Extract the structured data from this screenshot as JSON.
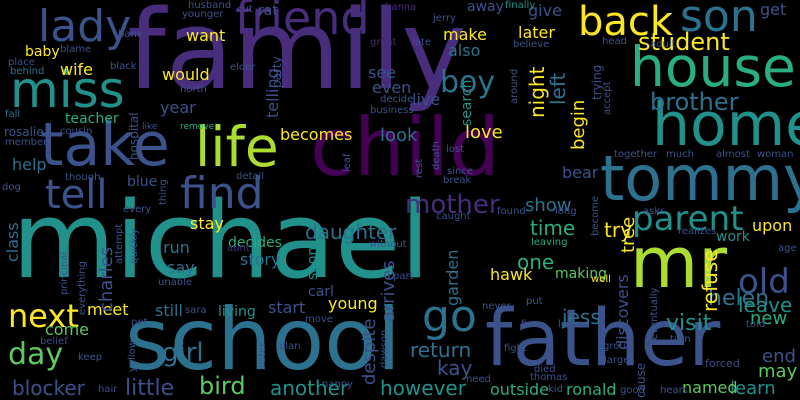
{
  "word_cloud": {
    "background": "#000000",
    "palette": [
      "#440154",
      "#472d7b",
      "#3b528b",
      "#2c728e",
      "#21918c",
      "#28ae80",
      "#5ec962",
      "#addc30",
      "#fde725"
    ],
    "words": [
      {
        "text": "family",
        "color": "#472d7b"
      },
      {
        "text": "michael",
        "color": "#21918c"
      },
      {
        "text": "school",
        "color": "#2c728e"
      },
      {
        "text": "father",
        "color": "#3b528b"
      },
      {
        "text": "child",
        "color": "#440154"
      },
      {
        "text": "mr",
        "color": "#addc30"
      },
      {
        "text": "tommy",
        "color": "#2c728e"
      },
      {
        "text": "home",
        "color": "#21918c"
      },
      {
        "text": "house",
        "color": "#28ae80"
      },
      {
        "text": "take",
        "color": "#3b528b"
      },
      {
        "text": "life",
        "color": "#addc30"
      },
      {
        "text": "miss",
        "color": "#21918c"
      },
      {
        "text": "friend",
        "color": "#472d7b"
      },
      {
        "text": "son",
        "color": "#2c728e"
      },
      {
        "text": "back",
        "color": "#fde725"
      },
      {
        "text": "lady",
        "color": "#3b528b"
      },
      {
        "text": "find",
        "color": "#3b528b"
      },
      {
        "text": "tell",
        "color": "#3b528b"
      },
      {
        "text": "parent",
        "color": "#21918c"
      },
      {
        "text": "go",
        "color": "#2c728e"
      },
      {
        "text": "next",
        "color": "#fde725"
      },
      {
        "text": "day",
        "color": "#5ec962"
      },
      {
        "text": "old",
        "color": "#3b528b"
      },
      {
        "text": "student",
        "color": "#fde725"
      },
      {
        "text": "brother",
        "color": "#2c728e"
      },
      {
        "text": "boy",
        "color": "#2c728e"
      },
      {
        "text": "mother",
        "color": "#472d7b"
      },
      {
        "text": "daughter",
        "color": "#2c728e"
      },
      {
        "text": "helen",
        "color": "#2c728e"
      },
      {
        "text": "girl",
        "color": "#2c728e"
      },
      {
        "text": "little",
        "color": "#3b528b"
      },
      {
        "text": "bird",
        "color": "#5ec962"
      },
      {
        "text": "another",
        "color": "#21918c"
      },
      {
        "text": "however",
        "color": "#21918c"
      },
      {
        "text": "blocker",
        "color": "#3b528b"
      },
      {
        "text": "return",
        "color": "#2c728e"
      },
      {
        "text": "kay",
        "color": "#3b528b"
      },
      {
        "text": "one",
        "color": "#28ae80"
      },
      {
        "text": "jess",
        "color": "#2c728e"
      },
      {
        "text": "try",
        "color": "#fde725"
      },
      {
        "text": "time",
        "color": "#28ae80"
      },
      {
        "text": "show",
        "color": "#2c728e"
      },
      {
        "text": "visit",
        "color": "#21918c"
      },
      {
        "text": "leave",
        "color": "#21918c"
      },
      {
        "text": "new",
        "color": "#28ae80"
      },
      {
        "text": "end",
        "color": "#3b528b"
      },
      {
        "text": "may",
        "color": "#5ec962"
      },
      {
        "text": "learn",
        "color": "#21918c"
      },
      {
        "text": "named",
        "color": "#5ec962"
      },
      {
        "text": "ronald",
        "color": "#28ae80"
      },
      {
        "text": "outside",
        "color": "#28ae80"
      },
      {
        "text": "love",
        "color": "#fde725"
      },
      {
        "text": "look",
        "color": "#2c728e"
      },
      {
        "text": "becomes",
        "color": "#fde725"
      },
      {
        "text": "year",
        "color": "#3b528b"
      },
      {
        "text": "would",
        "color": "#fde725"
      },
      {
        "text": "want",
        "color": "#fde725"
      },
      {
        "text": "wife",
        "color": "#fde725"
      },
      {
        "text": "baby",
        "color": "#fde725"
      },
      {
        "text": "teacher",
        "color": "#28ae80"
      },
      {
        "text": "help",
        "color": "#2c728e"
      },
      {
        "text": "come",
        "color": "#5ec962"
      },
      {
        "text": "meet",
        "color": "#fde725"
      },
      {
        "text": "still",
        "color": "#2c728e"
      },
      {
        "text": "stay",
        "color": "#fde725"
      },
      {
        "text": "run",
        "color": "#2c728e"
      },
      {
        "text": "say",
        "color": "#2c728e"
      },
      {
        "text": "decides",
        "color": "#28ae80"
      },
      {
        "text": "story",
        "color": "#2c728e"
      },
      {
        "text": "start",
        "color": "#3b528b"
      },
      {
        "text": "living",
        "color": "#21918c"
      },
      {
        "text": "young",
        "color": "#fde725"
      },
      {
        "text": "carl",
        "color": "#3b528b"
      },
      {
        "text": "see",
        "color": "#3b528b"
      },
      {
        "text": "even",
        "color": "#3b528b"
      },
      {
        "text": "live",
        "color": "#3b528b"
      },
      {
        "text": "make",
        "color": "#fde725"
      },
      {
        "text": "also",
        "color": "#2c728e"
      },
      {
        "text": "later",
        "color": "#fde725"
      },
      {
        "text": "give",
        "color": "#3b528b"
      },
      {
        "text": "get",
        "color": "#3b528b"
      },
      {
        "text": "away",
        "color": "#3b528b"
      },
      {
        "text": "bear",
        "color": "#3b528b"
      },
      {
        "text": "work",
        "color": "#21918c"
      },
      {
        "text": "upon",
        "color": "#fde725"
      },
      {
        "text": "hawk",
        "color": "#fde725"
      },
      {
        "text": "making",
        "color": "#5ec962"
      },
      {
        "text": "left",
        "color": "#2c728e"
      },
      {
        "text": "night",
        "color": "#fde725"
      },
      {
        "text": "begin",
        "color": "#fde725"
      },
      {
        "text": "refuse",
        "color": "#fde725"
      },
      {
        "text": "charles",
        "color": "#3b528b"
      },
      {
        "text": "class",
        "color": "#2c728e"
      },
      {
        "text": "garden",
        "color": "#2c728e"
      },
      {
        "text": "arrives",
        "color": "#3b528b"
      },
      {
        "text": "soon",
        "color": "#21918c"
      },
      {
        "text": "despite",
        "color": "#3b528b"
      },
      {
        "text": "tree",
        "color": "#fde725"
      },
      {
        "text": "discovers",
        "color": "#3b528b"
      },
      {
        "text": "search",
        "color": "#21918c"
      },
      {
        "text": "rat",
        "color": "#3b528b"
      },
      {
        "text": "cut",
        "color": "#3b528b"
      },
      {
        "text": "younger",
        "color": "#3b528b"
      },
      {
        "text": "husband",
        "color": "#3b528b"
      },
      {
        "text": "hanna",
        "color": "#472d7b"
      },
      {
        "text": "jerry",
        "color": "#3b528b"
      },
      {
        "text": "finally",
        "color": "#21918c"
      },
      {
        "text": "bank",
        "color": "#3b528b"
      },
      {
        "text": "blame",
        "color": "#3b528b"
      },
      {
        "text": "place",
        "color": "#3b528b"
      },
      {
        "text": "behind",
        "color": "#2c728e"
      },
      {
        "text": "black",
        "color": "#3b528b"
      },
      {
        "text": "elder",
        "color": "#3b528b"
      },
      {
        "text": "north",
        "color": "#3b528b"
      },
      {
        "text": "telling",
        "color": "#3b528b"
      },
      {
        "text": "hospital",
        "color": "#3b528b"
      },
      {
        "text": "party",
        "color": "#3b528b"
      },
      {
        "text": "fall",
        "color": "#2c728e"
      },
      {
        "text": "rosalie",
        "color": "#3b528b"
      },
      {
        "text": "cousin",
        "color": "#3b528b"
      },
      {
        "text": "remove",
        "color": "#28ae80"
      },
      {
        "text": "like",
        "color": "#3b528b"
      },
      {
        "text": "late",
        "color": "#3b528b"
      },
      {
        "text": "great",
        "color": "#472d7b"
      },
      {
        "text": "decide",
        "color": "#3b528b"
      },
      {
        "text": "business",
        "color": "#3b528b"
      },
      {
        "text": "around",
        "color": "#3b528b"
      },
      {
        "text": "believe",
        "color": "#3b528b"
      },
      {
        "text": "head",
        "color": "#3b528b"
      },
      {
        "text": "adult",
        "color": "#3b528b"
      },
      {
        "text": "trying",
        "color": "#3b528b"
      },
      {
        "text": "accept",
        "color": "#3b528b"
      },
      {
        "text": "lost",
        "color": "#3b528b"
      },
      {
        "text": "death",
        "color": "#3b528b"
      },
      {
        "text": "since",
        "color": "#3b528b"
      },
      {
        "text": "break",
        "color": "#3b528b"
      },
      {
        "text": "rest",
        "color": "#3b528b"
      },
      {
        "text": "together",
        "color": "#3b528b"
      },
      {
        "text": "much",
        "color": "#3b528b"
      },
      {
        "text": "almost",
        "color": "#3b528b"
      },
      {
        "text": "woman",
        "color": "#3b528b"
      },
      {
        "text": "though",
        "color": "#3b528b"
      },
      {
        "text": "blue",
        "color": "#3b528b"
      },
      {
        "text": "dog",
        "color": "#3b528b"
      },
      {
        "text": "detail",
        "color": "#3b528b"
      },
      {
        "text": "thing",
        "color": "#3b528b"
      },
      {
        "text": "every",
        "color": "#3b528b"
      },
      {
        "text": "leaf",
        "color": "#3b528b"
      },
      {
        "text": "caught",
        "color": "#3b528b"
      },
      {
        "text": "found",
        "color": "#3b528b"
      },
      {
        "text": "long",
        "color": "#3b528b"
      },
      {
        "text": "asks",
        "color": "#3b528b"
      },
      {
        "text": "realizes",
        "color": "#3b528b"
      },
      {
        "text": "age",
        "color": "#3b528b"
      },
      {
        "text": "become",
        "color": "#3b528b"
      },
      {
        "text": "leaving",
        "color": "#28ae80"
      },
      {
        "text": "without",
        "color": "#3b528b"
      },
      {
        "text": "attempt",
        "color": "#3b528b"
      },
      {
        "text": "quickly",
        "color": "#3b528b"
      },
      {
        "text": "sara",
        "color": "#3b528b"
      },
      {
        "text": "aunt",
        "color": "#472d7b"
      },
      {
        "text": "unable",
        "color": "#3b528b"
      },
      {
        "text": "principal",
        "color": "#3b528b"
      },
      {
        "text": "everything",
        "color": "#3b528b"
      },
      {
        "text": "pet",
        "color": "#3b528b"
      },
      {
        "text": "part",
        "color": "#3b528b"
      },
      {
        "text": "well",
        "color": "#fde725"
      },
      {
        "text": "turn",
        "color": "#3b528b"
      },
      {
        "text": "eventually",
        "color": "#3b528b"
      },
      {
        "text": "told",
        "color": "#3b528b"
      },
      {
        "text": "move",
        "color": "#3b528b"
      },
      {
        "text": "dawson",
        "color": "#3b528b"
      },
      {
        "text": "plan",
        "color": "#3b528b"
      },
      {
        "text": "sister",
        "color": "#3b528b"
      },
      {
        "text": "belief",
        "color": "#3b528b"
      },
      {
        "text": "keep",
        "color": "#3b528b"
      },
      {
        "text": "yellow",
        "color": "#3b528b"
      },
      {
        "text": "hair",
        "color": "#3b528b"
      },
      {
        "text": "nanny",
        "color": "#3b528b"
      },
      {
        "text": "need",
        "color": "#3b528b"
      },
      {
        "text": "fire",
        "color": "#3b528b"
      },
      {
        "text": "learns",
        "color": "#3b528b"
      },
      {
        "text": "fight",
        "color": "#3b528b"
      },
      {
        "text": "died",
        "color": "#3b528b"
      },
      {
        "text": "thomas",
        "color": "#3b528b"
      },
      {
        "text": "kid",
        "color": "#3b528b"
      },
      {
        "text": "never",
        "color": "#3b528b"
      },
      {
        "text": "put",
        "color": "#3b528b"
      },
      {
        "text": "group",
        "color": "#3b528b"
      },
      {
        "text": "large",
        "color": "#3b528b"
      },
      {
        "text": "good",
        "color": "#3b528b"
      },
      {
        "text": "cause",
        "color": "#3b528b"
      },
      {
        "text": "hears",
        "color": "#3b528b"
      },
      {
        "text": "forced",
        "color": "#3b528b"
      },
      {
        "text": "member",
        "color": "#3b528b"
      }
    ]
  }
}
